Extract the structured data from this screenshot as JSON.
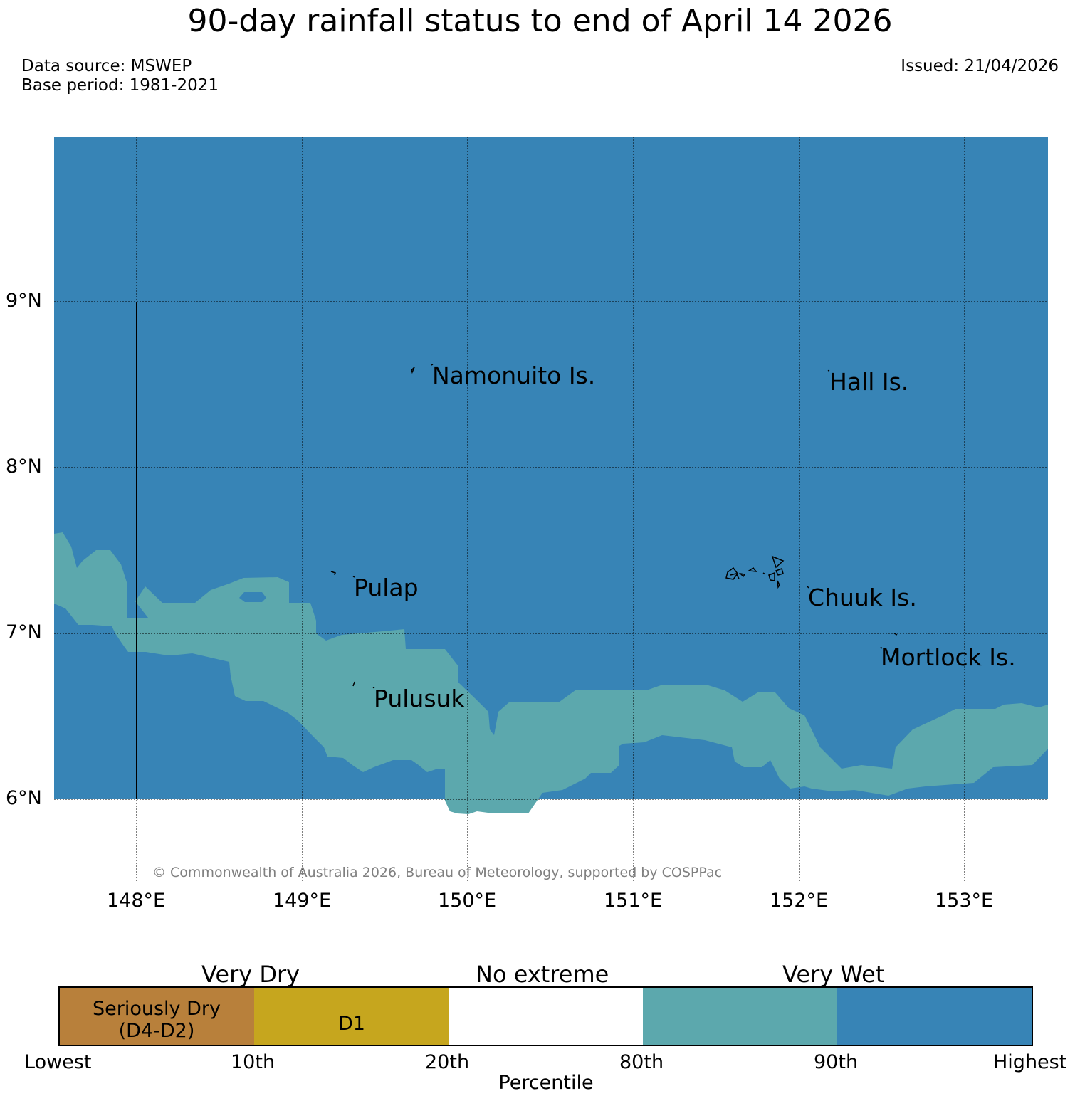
{
  "title": "90-day rainfall status to end of April 14 2026",
  "data_source": "Data source: MSWEP",
  "base_period": "Base period: 1981-2021",
  "issued": "Issued: 21/04/2026",
  "map": {
    "lat_labels": [
      "9°N",
      "8°N",
      "7°N",
      "6°N"
    ],
    "lon_labels": [
      "148°E",
      "149°E",
      "150°E",
      "151°E",
      "152°E",
      "153°E"
    ],
    "places": [
      "Namonuito Is.",
      "Hall Is.",
      "Pulap",
      "Chuuk Is.",
      "Mortlock Is.",
      "Pulusuk"
    ],
    "copyright": "© Commonwealth of Australia 2026, Bureau of Meteorology, supported by COSPPac",
    "colors": {
      "very_wet": "#3784b6",
      "wet_80_90": "#5ca8ad",
      "no_extreme": "#ffffff"
    }
  },
  "colorbar": {
    "headers": [
      "Very Dry",
      "No extreme",
      "Very Wet"
    ],
    "seriously_dry_line1": "Seriously Dry",
    "seriously_dry_line2": "(D4-D2)",
    "d1": "D1",
    "ticks": [
      "Lowest",
      "10th",
      "20th",
      "80th",
      "90th",
      "Highest"
    ],
    "axis_label": "Percentile",
    "colors": [
      "#b8803b",
      "#c6a61e",
      "#ffffff",
      "#5ca8ad",
      "#3784b6"
    ]
  }
}
